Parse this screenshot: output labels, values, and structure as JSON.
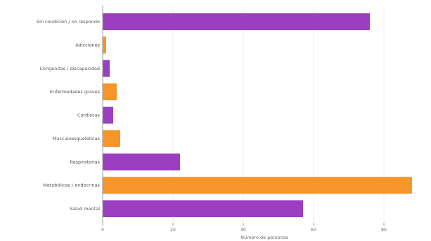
{
  "chart_data": {
    "type": "bar",
    "orientation": "horizontal",
    "title": "",
    "xlabel": "Número de personas",
    "ylabel": "",
    "categories": [
      "Sin condición / no responde",
      "Adicciones",
      "Congénitas / discapacidad",
      "Enfermedades graves",
      "Cardíacas",
      "Musculoesqueléticas",
      "Respiratorias",
      "Metabólicas / endocrinas",
      "Salud mental"
    ],
    "values": [
      76,
      1,
      2,
      4,
      3,
      5,
      22,
      88,
      57
    ],
    "bar_colors": [
      "#9b3fc0",
      "#f5952a",
      "#9b3fc0",
      "#f5952a",
      "#9b3fc0",
      "#f5952a",
      "#9b3fc0",
      "#f5952a",
      "#9b3fc0"
    ],
    "xlim": [
      0,
      92
    ],
    "xticks": [
      0,
      20,
      40,
      60,
      80
    ],
    "grid": true,
    "legend": "none"
  }
}
